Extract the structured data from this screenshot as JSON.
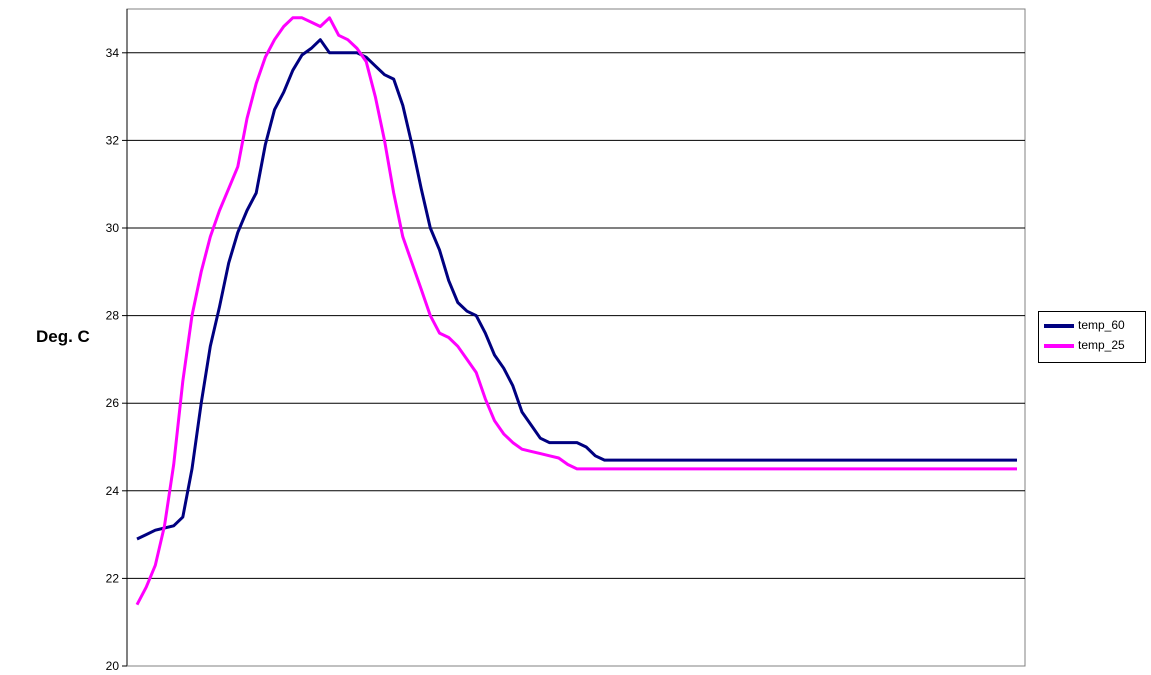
{
  "chart_data": {
    "type": "line",
    "title": "",
    "xlabel": "",
    "ylabel": "Deg. C",
    "ylim": [
      20,
      35
    ],
    "yticks": [
      20,
      22,
      24,
      26,
      28,
      30,
      32,
      34
    ],
    "grid": true,
    "legend_position": "right",
    "x": [
      0,
      1,
      2,
      3,
      4,
      5,
      6,
      7,
      8,
      9,
      10,
      11,
      12,
      13,
      14,
      15,
      16,
      17,
      18,
      19,
      20,
      21,
      22,
      23,
      24,
      25,
      26,
      27,
      28,
      29,
      30,
      31,
      32,
      33,
      34,
      35,
      36,
      37,
      38,
      39,
      40,
      41,
      42,
      43,
      44,
      45,
      46,
      47,
      48,
      49,
      50,
      51,
      52,
      53,
      54,
      55,
      56,
      57,
      58,
      59,
      60,
      61,
      62,
      63,
      64,
      65,
      66,
      67,
      68,
      69,
      70,
      71,
      72,
      73,
      74,
      75,
      76,
      77,
      78,
      79,
      80,
      81,
      82,
      83,
      84,
      85,
      86,
      87,
      88,
      89,
      90,
      91,
      92,
      93,
      94,
      95,
      96
    ],
    "series": [
      {
        "name": "temp_60",
        "color": "#000080",
        "values": [
          22.9,
          23.0,
          23.1,
          23.15,
          23.2,
          23.4,
          24.5,
          26.0,
          27.3,
          28.2,
          29.2,
          29.9,
          30.4,
          30.8,
          31.9,
          32.7,
          33.1,
          33.6,
          33.95,
          34.1,
          34.3,
          34.0,
          34.0,
          34.0,
          34.0,
          33.9,
          33.7,
          33.5,
          33.4,
          32.8,
          31.9,
          30.9,
          30.0,
          29.5,
          28.8,
          28.3,
          28.1,
          28.0,
          27.6,
          27.1,
          26.8,
          26.4,
          25.8,
          25.5,
          25.2,
          25.1,
          25.1,
          25.1,
          25.1,
          25.0,
          24.8,
          24.7,
          24.7,
          24.7,
          24.7,
          24.7,
          24.7,
          24.7,
          24.7,
          24.7,
          24.7,
          24.7,
          24.7,
          24.7,
          24.7,
          24.7,
          24.7,
          24.7,
          24.7,
          24.7,
          24.7,
          24.7,
          24.7,
          24.7,
          24.7,
          24.7,
          24.7,
          24.7,
          24.7,
          24.7,
          24.7,
          24.7,
          24.7,
          24.7,
          24.7,
          24.7,
          24.7,
          24.7,
          24.7,
          24.7,
          24.7,
          24.7,
          24.7,
          24.7,
          24.7,
          24.7,
          24.7
        ]
      },
      {
        "name": "temp_25",
        "color": "#ff00ff",
        "values": [
          21.4,
          21.8,
          22.3,
          23.2,
          24.6,
          26.5,
          28.0,
          29.0,
          29.8,
          30.4,
          30.9,
          31.4,
          32.5,
          33.3,
          33.9,
          34.3,
          34.6,
          34.8,
          34.8,
          34.7,
          34.6,
          34.8,
          34.4,
          34.3,
          34.1,
          33.8,
          33.0,
          32.0,
          30.8,
          29.8,
          29.2,
          28.6,
          28.0,
          27.6,
          27.5,
          27.3,
          27.0,
          26.7,
          26.1,
          25.6,
          25.3,
          25.1,
          24.95,
          24.9,
          24.85,
          24.8,
          24.75,
          24.6,
          24.5,
          24.5,
          24.5,
          24.5,
          24.5,
          24.5,
          24.5,
          24.5,
          24.5,
          24.5,
          24.5,
          24.5,
          24.5,
          24.5,
          24.5,
          24.5,
          24.5,
          24.5,
          24.5,
          24.5,
          24.5,
          24.5,
          24.5,
          24.5,
          24.5,
          24.5,
          24.5,
          24.5,
          24.5,
          24.5,
          24.5,
          24.5,
          24.5,
          24.5,
          24.5,
          24.5,
          24.5,
          24.5,
          24.5,
          24.5,
          24.5,
          24.5,
          24.5,
          24.5,
          24.5,
          24.5,
          24.5,
          24.5,
          24.5
        ]
      }
    ]
  }
}
